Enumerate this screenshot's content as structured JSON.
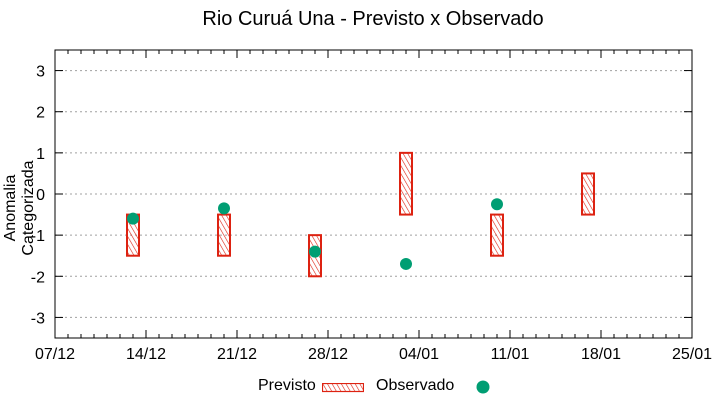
{
  "chart_data": {
    "type": "scatter",
    "title": "Rio Curuá Una - Previsto x Observado",
    "xlabel": "",
    "ylabel": "Anomalia Categorizada",
    "ylim": [
      -3.5,
      3.5
    ],
    "yticks": [
      -3,
      -2,
      -1,
      0,
      1,
      2,
      3
    ],
    "xticks": [
      "07/12",
      "14/12",
      "21/12",
      "28/12",
      "04/01",
      "11/01",
      "18/01",
      "25/01"
    ],
    "grid": "horizontal dotted",
    "legend_position": "bottom",
    "categories": [
      "13/12",
      "20/12",
      "27/12",
      "03/01",
      "10/01",
      "17/01"
    ],
    "series": [
      {
        "name": "Previsto",
        "style": "hatched red box (range)",
        "color": "#dd2211",
        "low": [
          -1.5,
          -1.5,
          -2.0,
          -0.5,
          -1.5,
          -0.5
        ],
        "high": [
          -0.5,
          -0.5,
          -1.0,
          1.0,
          -0.5,
          0.5
        ]
      },
      {
        "name": "Observado",
        "style": "filled circle",
        "color": "#009e73",
        "values": [
          -0.6,
          -0.35,
          -1.4,
          -1.7,
          -0.25,
          null
        ]
      }
    ]
  },
  "labels": {
    "title": "Rio Curuá Una - Previsto x Observado",
    "ylabel": "Anomalia Categorizada",
    "legend_previsto": "Previsto",
    "legend_observado": "Observado"
  }
}
